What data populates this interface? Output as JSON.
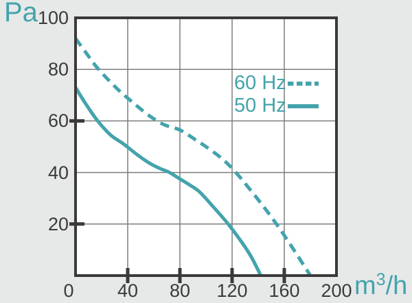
{
  "chart_data": {
    "type": "line",
    "title": "",
    "ylabel": "Pa",
    "xlabel": {
      "text": "m3/h",
      "prefix": "m",
      "sup": "3",
      "suffix": "/h"
    },
    "xlim": [
      0,
      200
    ],
    "ylim": [
      0,
      100
    ],
    "grid": "on",
    "x_ticks": {
      "labels": [
        0,
        40,
        80,
        120,
        160,
        200
      ],
      "gridlines": [
        40,
        80,
        120,
        160
      ],
      "tick_marks": [
        40,
        80,
        120,
        160
      ]
    },
    "y_ticks": {
      "labels": [
        100,
        80,
        60,
        40,
        20
      ],
      "gridlines": [
        80,
        60,
        40,
        20
      ],
      "tick_marks": [
        60,
        20
      ]
    },
    "legend": {
      "position": "inside-top-right"
    },
    "series": [
      {
        "name": "60 Hz",
        "line": "dashed",
        "points": [
          [
            0,
            92
          ],
          [
            8,
            86.5
          ],
          [
            16,
            81
          ],
          [
            26,
            75.5
          ],
          [
            35,
            71
          ],
          [
            42,
            68
          ],
          [
            49,
            65
          ],
          [
            58,
            61.5
          ],
          [
            68,
            58.5
          ],
          [
            80,
            56.5
          ],
          [
            91,
            53
          ],
          [
            100,
            50
          ],
          [
            112,
            45.5
          ],
          [
            122,
            40.5
          ],
          [
            132,
            34.5
          ],
          [
            143,
            27.5
          ],
          [
            154,
            20
          ],
          [
            166,
            11
          ],
          [
            180,
            0
          ]
        ]
      },
      {
        "name": "50 Hz",
        "line": "solid",
        "points": [
          [
            0,
            73
          ],
          [
            8,
            66.5
          ],
          [
            17,
            60
          ],
          [
            27,
            54.5
          ],
          [
            37,
            51
          ],
          [
            47,
            47
          ],
          [
            57,
            43.5
          ],
          [
            65,
            41.5
          ],
          [
            72,
            40
          ],
          [
            80,
            37.5
          ],
          [
            88,
            35
          ],
          [
            95,
            32.5
          ],
          [
            105,
            27
          ],
          [
            117,
            20
          ],
          [
            128,
            12.5
          ],
          [
            135,
            7
          ],
          [
            142,
            0
          ]
        ]
      }
    ],
    "colors": {
      "curve": "#44a3ac",
      "accent_text": "#44a3ac",
      "axis": "#3a3a3c",
      "tick_text": "#3a3a3c",
      "grid": "#7d7d7f",
      "plot_bg": "#ffffff",
      "page_bg": "#e7e8e8"
    }
  }
}
